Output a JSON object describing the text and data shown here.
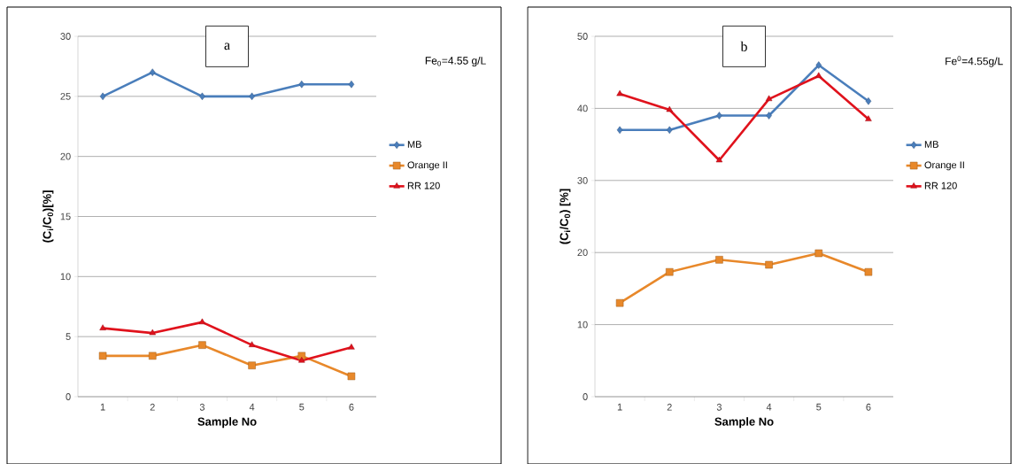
{
  "chart_data": [
    {
      "type": "line",
      "xlabel": "Sample No",
      "ylabel": "(C$_{i}$/C$_{0}$)[%]",
      "categories": [
        "1",
        "2",
        "3",
        "4",
        "5",
        "6"
      ],
      "series": [
        {
          "name": "MB",
          "color": "#4a7ebb",
          "marker": "diamond",
          "values": [
            25,
            27,
            25,
            25,
            26,
            26
          ]
        },
        {
          "name": "Orange II",
          "color": "#e8882a",
          "marker": "square",
          "values": [
            3.4,
            3.4,
            4.3,
            2.6,
            3.4,
            1.7
          ]
        },
        {
          "name": "RR 120",
          "color": "#e0121c",
          "marker": "triangle",
          "values": [
            5.7,
            5.3,
            6.2,
            4.3,
            3.0,
            4.1
          ]
        }
      ],
      "ylim": [
        0,
        30
      ],
      "yticks": [
        0,
        5,
        10,
        15,
        20,
        25,
        30
      ],
      "grid": "y",
      "legend": "right",
      "annotations": [
        "a",
        "Fe$_{0}$=4.55 g/L"
      ]
    },
    {
      "type": "line",
      "xlabel": "Sample No",
      "ylabel": "(C$_{i}$/C$_{0}$) [%]",
      "categories": [
        "1",
        "2",
        "3",
        "4",
        "5",
        "6"
      ],
      "series": [
        {
          "name": "MB",
          "color": "#4a7ebb",
          "marker": "diamond",
          "values": [
            37,
            37,
            39,
            39,
            46,
            41
          ]
        },
        {
          "name": "Orange II",
          "color": "#e8882a",
          "marker": "square",
          "values": [
            13,
            17.3,
            19,
            18.3,
            19.9,
            17.3
          ]
        },
        {
          "name": "RR 120",
          "color": "#e0121c",
          "marker": "triangle",
          "values": [
            42,
            39.8,
            32.8,
            41.3,
            44.5,
            38.5
          ]
        }
      ],
      "ylim": [
        0,
        50
      ],
      "yticks": [
        0,
        10,
        20,
        30,
        40,
        50
      ],
      "grid": "y",
      "legend": "right",
      "annotations": [
        "b",
        "Fe$^{0}$=4.55g/L"
      ]
    }
  ]
}
